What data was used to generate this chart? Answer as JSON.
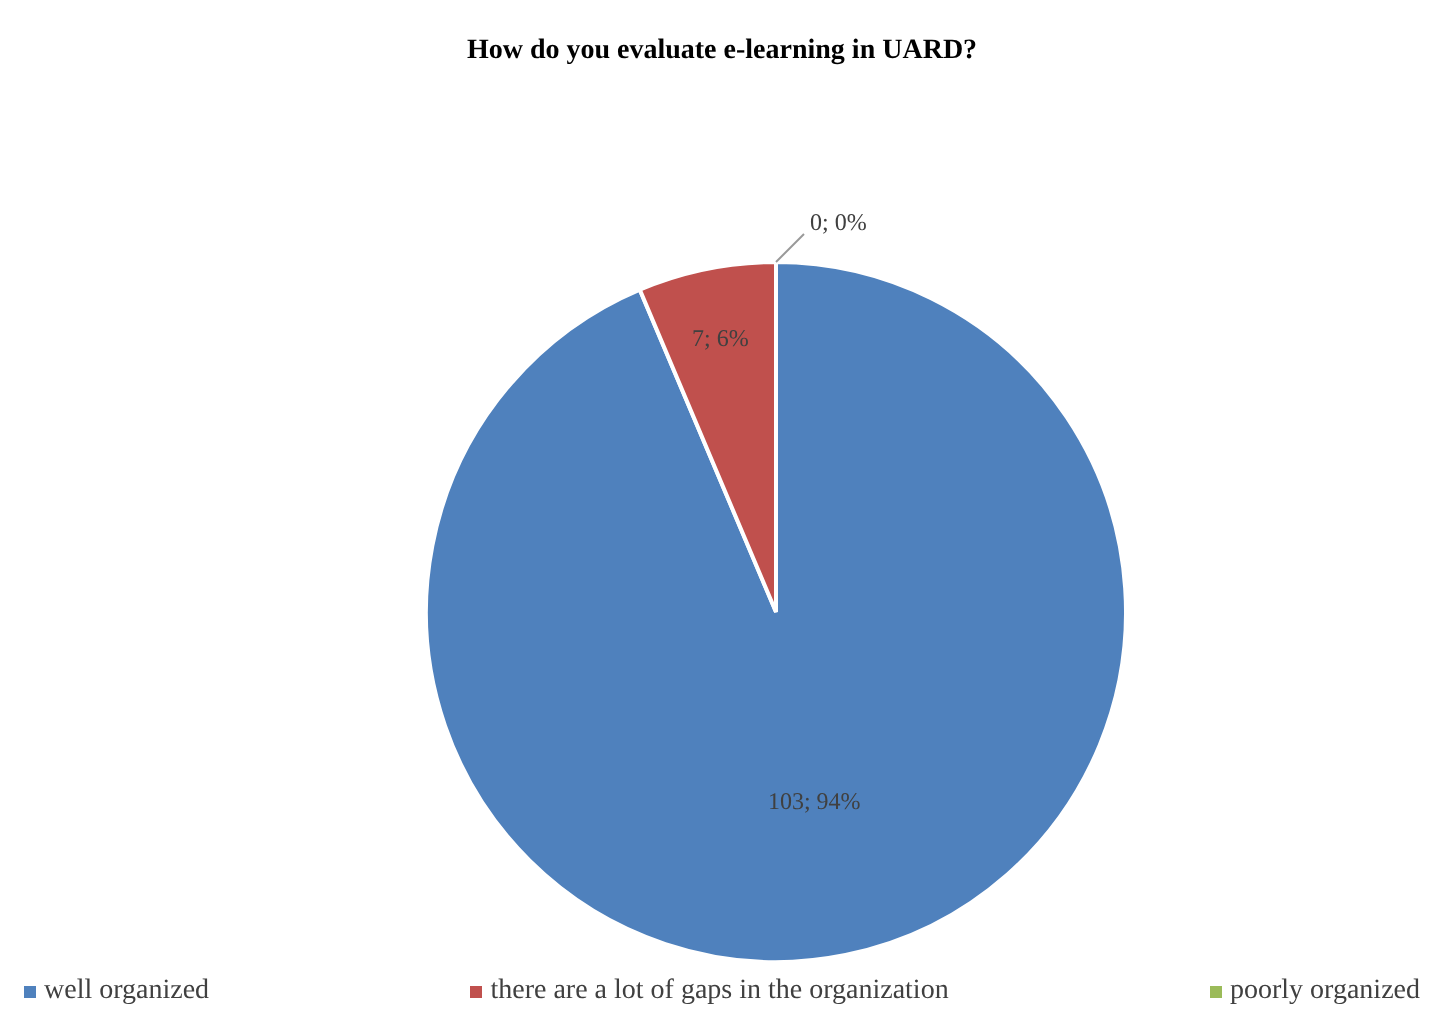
{
  "chart_data": {
    "type": "pie",
    "title": "How do you evaluate e-learning in UARD?",
    "categories": [
      "well organized",
      "there are a lot of gaps in the organization",
      "poorly organized"
    ],
    "values": [
      103,
      7,
      0
    ],
    "colors": [
      "#4f81bd",
      "#c0504d",
      "#9bbb59"
    ],
    "value_labels": [
      "103; 94%",
      "7; 6%",
      "0; 0%"
    ],
    "legend": "bottom"
  }
}
